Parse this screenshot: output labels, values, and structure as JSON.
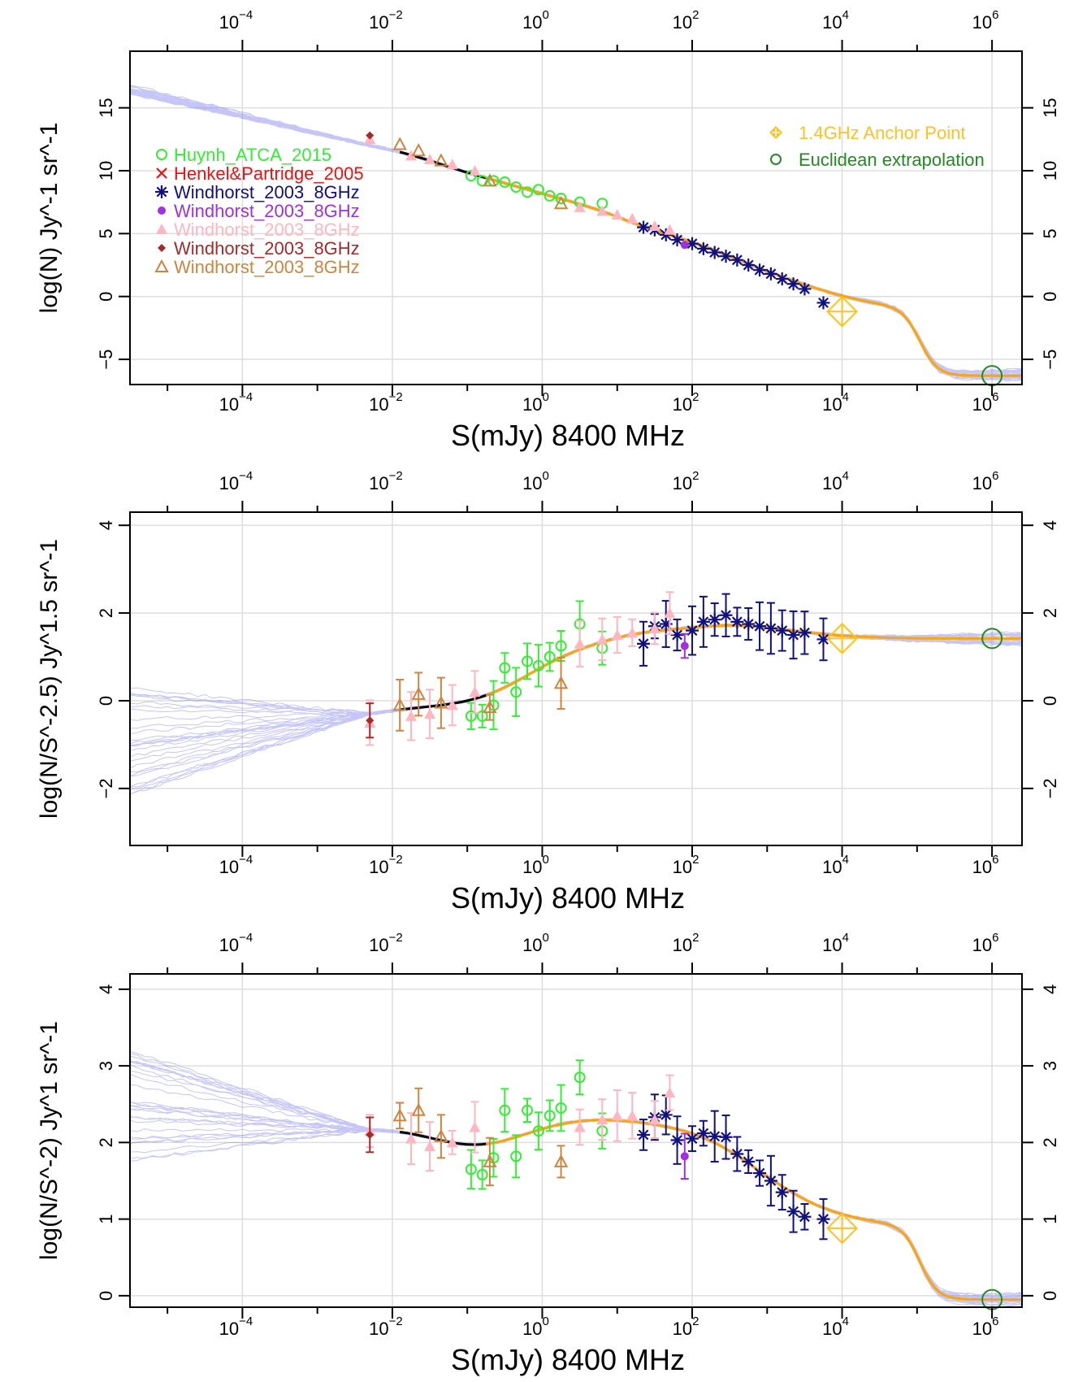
{
  "figure": {
    "description_type": "three stacked log-log source count panels"
  },
  "legend_left": [
    {
      "label": "Huynh_ATCA_2015",
      "color": "#33ee33",
      "marker": "circle-open"
    },
    {
      "label": "Henkel&Partridge_2005",
      "color": "#ee1111",
      "marker": "cross"
    },
    {
      "label": "Windhorst_2003_8GHz",
      "color": "#101080",
      "marker": "asterisk"
    },
    {
      "label": "Windhorst_2003_8GHz",
      "color": "#a030e0",
      "marker": "dot"
    },
    {
      "label": "Windhorst_2003_8GHz",
      "color": "#ffb6c1",
      "marker": "triangle-filled"
    },
    {
      "label": "Windhorst_2003_8GHz",
      "color": "#a52a2a",
      "marker": "diamond-small"
    },
    {
      "label": "Windhorst_2003_8GHz",
      "color": "#cd853f",
      "marker": "triangle-open"
    }
  ],
  "legend_right": [
    {
      "label": "1.4GHz Anchor Point",
      "color": "#ffc125",
      "marker": "diamond-plus"
    },
    {
      "label": "Euclidean extrapolation",
      "color": "#228b22",
      "marker": "circle-open"
    }
  ],
  "colors": {
    "fit_band": "#8080ee",
    "black_fit": "#000000",
    "orange_fit": "#ffa500",
    "grid": "#dddddd"
  },
  "chart_data": [
    {
      "type": "scatter",
      "panel": "top",
      "xlabel": "S(mJy) 8400 MHz",
      "ylabel": "log(N) Jy^-1 sr^-1",
      "xscale": "log10",
      "xlim": [
        -5.5,
        6.4
      ],
      "ylim": [
        -7,
        19.5
      ],
      "xticks": [
        -4,
        -2,
        0,
        2,
        4,
        6
      ],
      "xtick_labels": [
        "10",
        "10",
        "10",
        "10",
        "10",
        "10"
      ],
      "xtick_exponents": [
        "−4",
        "−2",
        "0",
        "2",
        "4",
        "6"
      ],
      "yticks": [
        -5,
        0,
        5,
        10,
        15
      ],
      "ytick_labels": [
        "−5",
        "0",
        "5",
        "10",
        "15"
      ],
      "series": [
        {
          "name": "Huynh_ATCA_2015",
          "x": [
            -0.95,
            -0.8,
            -0.65,
            -0.5,
            -0.35,
            -0.2,
            -0.05,
            0.1,
            0.25,
            0.5,
            0.8
          ],
          "y": [
            9.6,
            9.2,
            9.2,
            9.1,
            8.7,
            8.3,
            8.5,
            8.0,
            7.8,
            7.5,
            7.4
          ]
        },
        {
          "name": "Windhorst_2003_8GHz_asterisk",
          "x": [
            1.35,
            1.5,
            1.65,
            1.8,
            2.0,
            2.15,
            2.3,
            2.45,
            2.6,
            2.75,
            2.9,
            3.05,
            3.2,
            3.35,
            3.5,
            3.75
          ],
          "y": [
            5.5,
            5.3,
            4.9,
            4.5,
            4.2,
            3.8,
            3.5,
            3.2,
            2.9,
            2.5,
            2.1,
            1.8,
            1.4,
            1.0,
            0.6,
            -0.5
          ]
        },
        {
          "name": "Windhorst_2003_8GHz_dot",
          "x": [
            1.9
          ],
          "y": [
            4.1
          ]
        },
        {
          "name": "Windhorst_2003_8GHz_pink",
          "x": [
            -2.3,
            -1.75,
            -1.5,
            -1.2,
            -0.9,
            0.5,
            0.8,
            1.0,
            1.2,
            1.5,
            1.7
          ],
          "y": [
            12.5,
            11.2,
            10.9,
            10.5,
            10.0,
            7.1,
            6.8,
            6.5,
            6.2,
            5.6,
            5.3
          ]
        },
        {
          "name": "Windhorst_2003_8GHz_brown",
          "x": [
            -2.3
          ],
          "y": [
            12.8
          ]
        },
        {
          "name": "Windhorst_2003_8GHz_tri",
          "x": [
            -1.9,
            -1.65,
            -1.35,
            -0.7,
            0.25
          ],
          "y": [
            12.1,
            11.6,
            10.8,
            9.2,
            7.4
          ]
        }
      ],
      "anchor": {
        "x": 4.0,
        "y": -1.2
      },
      "euclid": {
        "x": 6.0,
        "y": -6.3
      }
    },
    {
      "type": "scatter",
      "panel": "middle",
      "xlabel": "S(mJy) 8400 MHz",
      "ylabel": "log(N/S^-2.5) Jy^1.5 sr^-1",
      "xscale": "log10",
      "xlim": [
        -5.5,
        6.4
      ],
      "ylim": [
        -3.3,
        4.3
      ],
      "xticks": [
        -4,
        -2,
        0,
        2,
        4,
        6
      ],
      "xtick_labels": [
        "10",
        "10",
        "10",
        "10",
        "10",
        "10"
      ],
      "xtick_exponents": [
        "−4",
        "−2",
        "0",
        "2",
        "4",
        "6"
      ],
      "yticks": [
        -2,
        0,
        2,
        4
      ],
      "ytick_labels": [
        "−2",
        "0",
        "2",
        "4"
      ],
      "series": [
        {
          "name": "Huynh_ATCA_2015",
          "x": [
            -0.95,
            -0.8,
            -0.65,
            -0.5,
            -0.35,
            -0.2,
            -0.05,
            0.1,
            0.25,
            0.5,
            0.8
          ],
          "y": [
            -0.35,
            -0.35,
            -0.1,
            0.75,
            0.2,
            0.9,
            0.8,
            1.0,
            1.25,
            1.75,
            1.2
          ]
        },
        {
          "name": "Windhorst_2003_8GHz_asterisk",
          "x": [
            1.35,
            1.5,
            1.65,
            1.8,
            2.0,
            2.15,
            2.3,
            2.45,
            2.6,
            2.75,
            2.9,
            3.05,
            3.2,
            3.35,
            3.5,
            3.75
          ],
          "y": [
            1.3,
            1.7,
            1.75,
            1.5,
            1.6,
            1.8,
            1.85,
            1.95,
            1.8,
            1.75,
            1.7,
            1.65,
            1.6,
            1.5,
            1.55,
            1.4
          ]
        },
        {
          "name": "Windhorst_2003_8GHz_dot",
          "x": [
            1.9
          ],
          "y": [
            1.25
          ]
        },
        {
          "name": "Windhorst_2003_8GHz_pink",
          "x": [
            -2.3,
            -1.75,
            -1.5,
            -1.2,
            -0.9,
            0.5,
            0.8,
            1.0,
            1.2,
            1.5,
            1.7
          ],
          "y": [
            -0.5,
            -0.35,
            -0.3,
            -0.1,
            0.2,
            1.3,
            1.4,
            1.5,
            1.55,
            1.65,
            2.0
          ]
        },
        {
          "name": "Windhorst_2003_8GHz_brown",
          "x": [
            -2.3
          ],
          "y": [
            -0.45
          ]
        },
        {
          "name": "Windhorst_2003_8GHz_tri",
          "x": [
            -1.9,
            -1.65,
            -1.35,
            -0.7,
            0.25
          ],
          "y": [
            -0.1,
            0.15,
            -0.05,
            -0.15,
            0.4
          ]
        }
      ],
      "anchor": {
        "x": 4.0,
        "y": 1.42
      },
      "euclid": {
        "x": 6.0,
        "y": 1.42
      }
    },
    {
      "type": "scatter",
      "panel": "bottom",
      "xlabel": "S(mJy) 8400 MHz",
      "ylabel": "log(N/S^-2) Jy^1 sr^-1",
      "xscale": "log10",
      "xlim": [
        -5.5,
        6.4
      ],
      "ylim": [
        -0.15,
        4.2
      ],
      "xticks": [
        -4,
        -2,
        0,
        2,
        4,
        6
      ],
      "xtick_labels": [
        "10",
        "10",
        "10",
        "10",
        "10",
        "10"
      ],
      "xtick_exponents": [
        "−4",
        "−2",
        "0",
        "2",
        "4",
        "6"
      ],
      "yticks": [
        0,
        1,
        2,
        3,
        4
      ],
      "ytick_labels": [
        "0",
        "1",
        "2",
        "3",
        "4"
      ],
      "series": [
        {
          "name": "Huynh_ATCA_2015",
          "x": [
            -0.95,
            -0.8,
            -0.65,
            -0.5,
            -0.35,
            -0.2,
            -0.05,
            0.1,
            0.25,
            0.5,
            0.8
          ],
          "y": [
            1.65,
            1.58,
            1.8,
            2.42,
            1.82,
            2.42,
            2.15,
            2.35,
            2.45,
            2.85,
            2.15
          ]
        },
        {
          "name": "Windhorst_2003_8GHz_asterisk",
          "x": [
            1.35,
            1.5,
            1.65,
            1.8,
            2.0,
            2.15,
            2.3,
            2.45,
            2.6,
            2.75,
            2.9,
            3.05,
            3.2,
            3.35,
            3.5,
            3.75
          ],
          "y": [
            2.1,
            2.33,
            2.36,
            2.03,
            2.05,
            2.12,
            2.08,
            2.07,
            1.85,
            1.75,
            1.6,
            1.5,
            1.35,
            1.1,
            1.03,
            1.0
          ]
        },
        {
          "name": "Windhorst_2003_8GHz_dot",
          "x": [
            1.9
          ],
          "y": [
            1.82
          ]
        },
        {
          "name": "Windhorst_2003_8GHz_pink",
          "x": [
            -2.3,
            -1.75,
            -1.5,
            -1.2,
            -0.9,
            0.5,
            0.8,
            1.0,
            1.2,
            1.5,
            1.7
          ],
          "y": [
            2.15,
            2.05,
            1.95,
            2.0,
            2.2,
            2.2,
            2.3,
            2.35,
            2.35,
            2.3,
            2.65
          ]
        },
        {
          "name": "Windhorst_2003_8GHz_brown",
          "x": [
            -2.3
          ],
          "y": [
            2.1
          ]
        },
        {
          "name": "Windhorst_2003_8GHz_tri",
          "x": [
            -1.9,
            -1.65,
            -1.35,
            -0.7,
            0.25
          ],
          "y": [
            2.35,
            2.42,
            2.08,
            1.75,
            1.75
          ]
        }
      ],
      "anchor": {
        "x": 4.0,
        "y": 0.88
      },
      "euclid": {
        "x": 6.0,
        "y": -0.05
      }
    }
  ]
}
